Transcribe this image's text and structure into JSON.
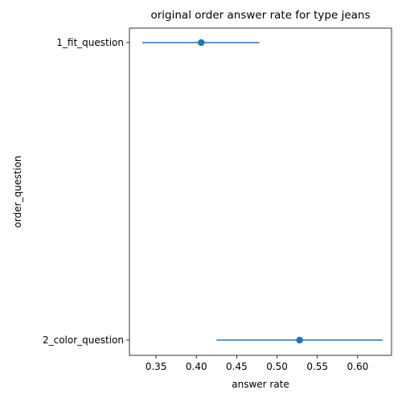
{
  "chart_data": {
    "type": "scatter",
    "title": "original order answer rate for type jeans",
    "xlabel": "answer rate",
    "ylabel": "order_question",
    "xlim": [
      0.317,
      0.642
    ],
    "xticks": [
      0.35,
      0.4,
      0.45,
      0.5,
      0.55,
      0.6
    ],
    "xtick_labels": [
      "0.35",
      "0.40",
      "0.45",
      "0.50",
      "0.55",
      "0.60"
    ],
    "categories": [
      "1_fit_question",
      "2_color_question"
    ],
    "points": [
      {
        "category": "1_fit_question",
        "value": 0.406,
        "low": 0.333,
        "high": 0.478
      },
      {
        "category": "2_color_question",
        "value": 0.528,
        "low": 0.425,
        "high": 0.631
      }
    ],
    "color": "#1f77b4",
    "grid": false,
    "legend": "none"
  }
}
